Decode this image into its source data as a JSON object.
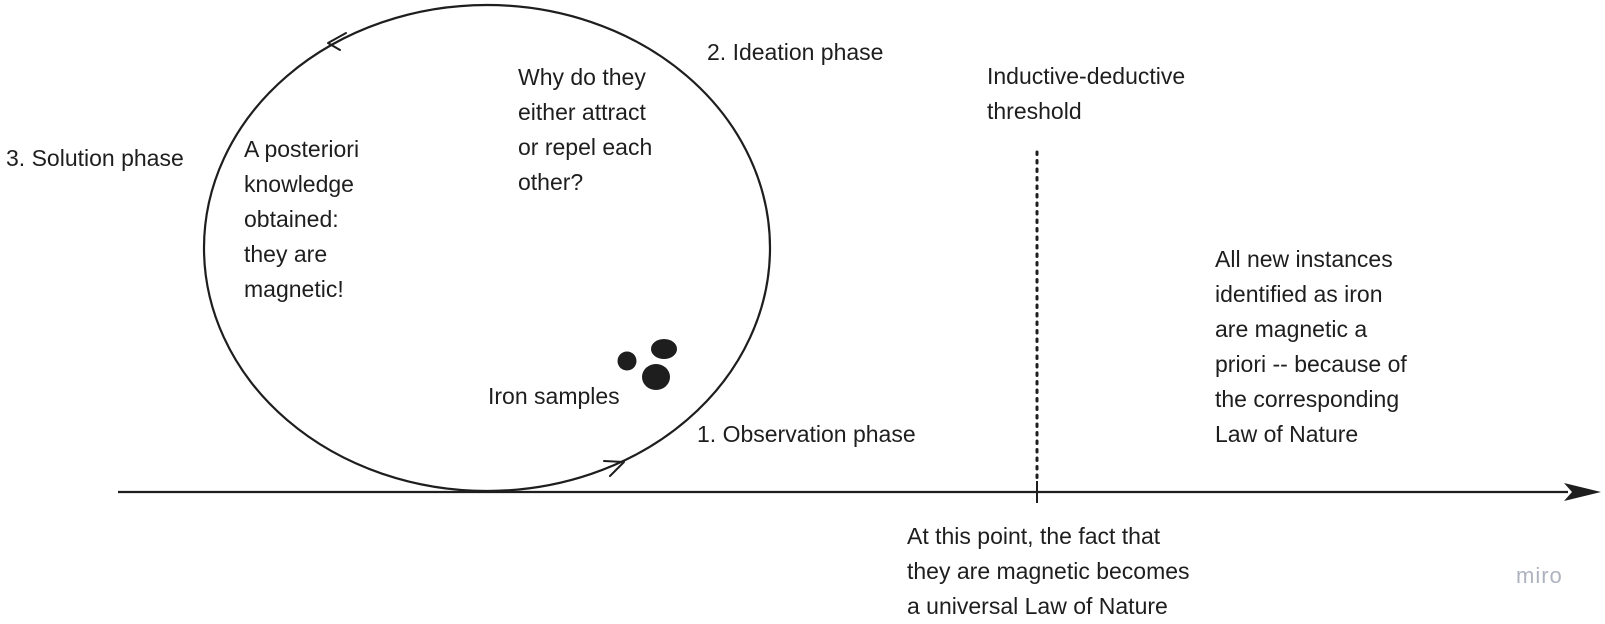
{
  "labels": {
    "ideation_phase": "2. Ideation phase",
    "solution_phase": "3. Solution phase",
    "observation_phase": "1. Observation phase",
    "question": "Why do they\neither attract\nor repel each\nother?",
    "a_posteriori": "A posteriori\nknowledge\nobtained:\nthey are\nmagnetic!",
    "iron_samples": "Iron samples",
    "threshold": "Inductive-deductive\nthreshold",
    "law_point": "At this point, the fact that\nthey are magnetic becomes\na universal Law of Nature",
    "a_priori": "All new instances\nidentified as iron\nare magnetic a\npriori -- because of\nthe corresponding\nLaw of Nature"
  },
  "watermark": "miro",
  "colors": {
    "ink": "#1e1e1e",
    "watermark": "#aeb3bf",
    "background": "#ffffff"
  }
}
